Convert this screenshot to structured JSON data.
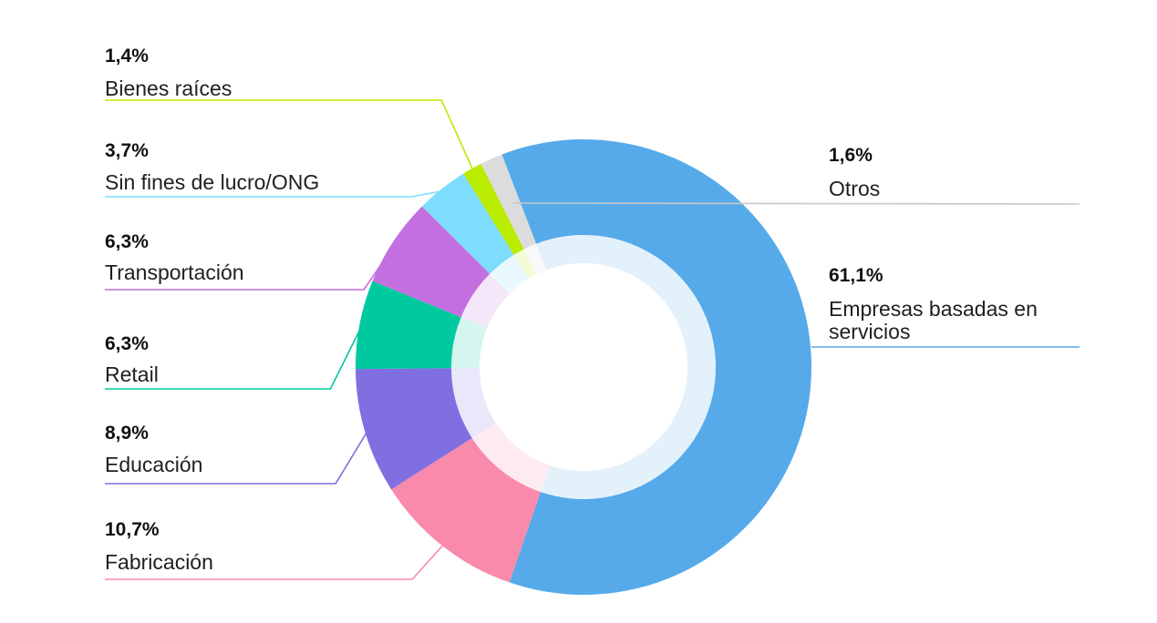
{
  "chart_data": {
    "type": "pie",
    "variant": "donut",
    "title": "",
    "slices": [
      {
        "label": "Empresas basadas en servicios",
        "label_lines": [
          "Empresas basadas en",
          "servicios"
        ],
        "value": 61.1,
        "value_label": "61,1%",
        "color": "#56aaea",
        "side": "right"
      },
      {
        "label": "Fabricación",
        "label_lines": [
          "Fabricación"
        ],
        "value": 10.7,
        "value_label": "10,7%",
        "color": "#f98aab",
        "side": "left"
      },
      {
        "label": "Educación",
        "label_lines": [
          "Educación"
        ],
        "value": 8.9,
        "value_label": "8,9%",
        "color": "#7f6fe0",
        "side": "left"
      },
      {
        "label": "Retail",
        "label_lines": [
          "Retail"
        ],
        "value": 6.3,
        "value_label": "6,3%",
        "color": "#00c9a0",
        "side": "left"
      },
      {
        "label": "Transportación",
        "label_lines": [
          "Transportación"
        ],
        "value": 6.3,
        "value_label": "6,3%",
        "color": "#c36fe0",
        "side": "left"
      },
      {
        "label": "Sin fines de lucro/ONG",
        "label_lines": [
          "Sin fines de lucro/ONG"
        ],
        "value": 3.7,
        "value_label": "3,7%",
        "color": "#7edcfd",
        "side": "left"
      },
      {
        "label": "Bienes raíces",
        "label_lines": [
          "Bienes raíces"
        ],
        "value": 1.4,
        "value_label": "1,4%",
        "color": "#b9ec00",
        "side": "left"
      },
      {
        "label": "Otros",
        "label_lines": [
          "Otros"
        ],
        "value": 1.6,
        "value_label": "1,6%",
        "color": "#dcdcdc",
        "side": "right"
      }
    ]
  }
}
